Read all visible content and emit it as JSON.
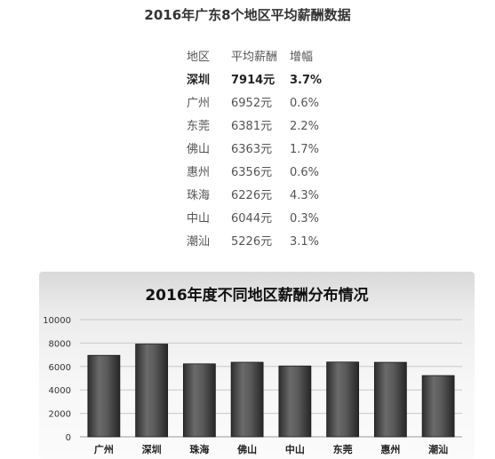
{
  "page": {
    "title": "2016年广东8个地区平均薪酬数据"
  },
  "table": {
    "headers": [
      "地区",
      "平均薪酬",
      "增幅"
    ],
    "rows": [
      {
        "region": "深圳",
        "salary": "7914元",
        "growth": "3.7%",
        "highlight": true
      },
      {
        "region": "广州",
        "salary": "6952元",
        "growth": "0.6%"
      },
      {
        "region": "东莞",
        "salary": "6381元",
        "growth": "2.2%"
      },
      {
        "region": "佛山",
        "salary": "6363元",
        "growth": "1.7%"
      },
      {
        "region": "惠州",
        "salary": "6356元",
        "growth": "0.6%"
      },
      {
        "region": "珠海",
        "salary": "6226元",
        "growth": "4.3%"
      },
      {
        "region": "中山",
        "salary": "6044元",
        "growth": "0.3%"
      },
      {
        "region": "潮汕",
        "salary": "5226元",
        "growth": "3.1%"
      }
    ]
  },
  "chart_data": {
    "type": "bar",
    "title": "2016年度不同地区薪酬分布情况",
    "xlabel": "",
    "ylabel": "",
    "categories": [
      "广州",
      "深圳",
      "珠海",
      "佛山",
      "中山",
      "东莞",
      "惠州",
      "潮汕"
    ],
    "values": [
      6952,
      7914,
      6226,
      6363,
      6044,
      6381,
      6356,
      5226
    ],
    "ylim": [
      0,
      10000
    ],
    "yticks": [
      "0",
      "2000",
      "4000",
      "6000",
      "8000",
      "10000"
    ],
    "grid": true,
    "legend": "none",
    "bar_color": "#4a4a4a"
  }
}
